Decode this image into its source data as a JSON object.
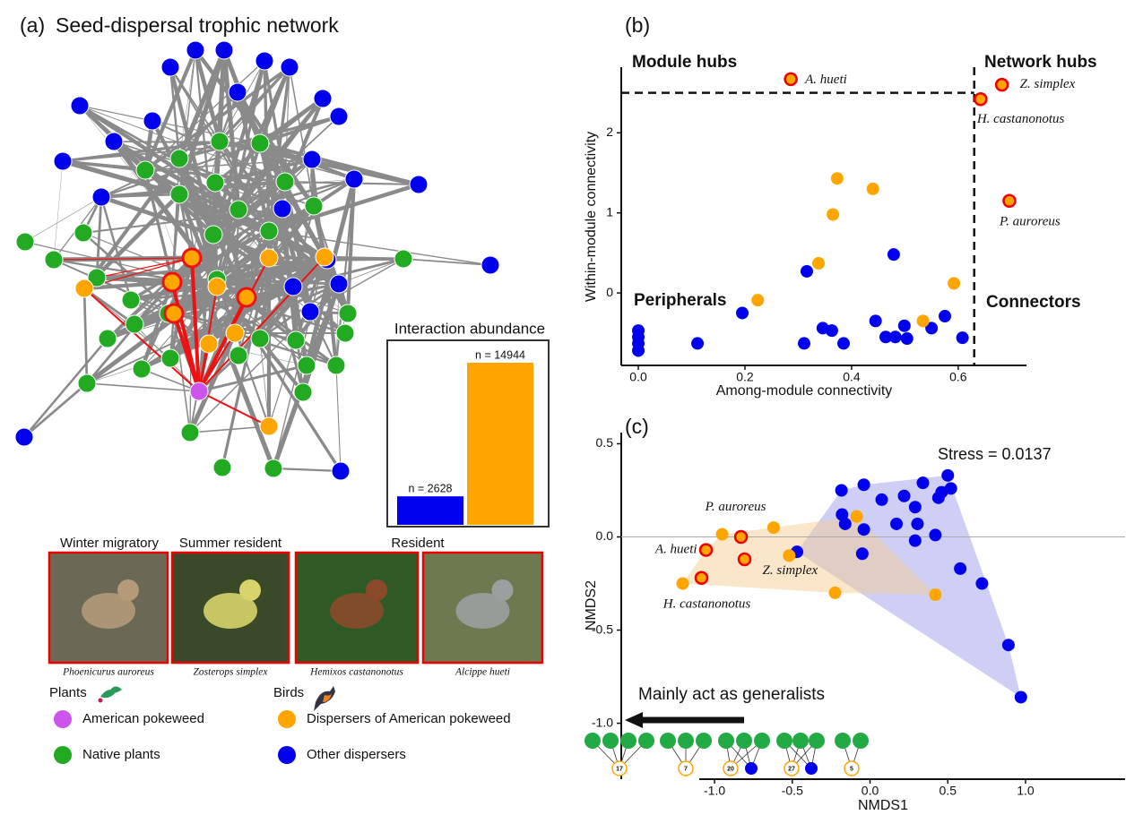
{
  "chart_data": [
    {
      "type": "network",
      "panel_label": "(a)",
      "title": "Seed-dispersal trophic network",
      "photo_groups": [
        "Winter migratory",
        "Summer resident",
        "Resident"
      ],
      "species": [
        "Phoenicurus auroreus",
        "Zosterops simplex",
        "Hemixos castanonotus",
        "Alcippe hueti"
      ],
      "legend": [
        {
          "title": "Plants",
          "items": [
            {
              "name": "American pokeweed",
              "color": "#cc55ee"
            },
            {
              "name": "Native plants",
              "color": "#22aa22"
            }
          ]
        },
        {
          "title": "Birds",
          "items": [
            {
              "name": "Dispersers of American pokeweed",
              "color": "#ffa500"
            },
            {
              "name": "Other dispersers",
              "color": "#0000ee"
            }
          ]
        }
      ]
    },
    {
      "type": "bar",
      "title": "Interaction abundance",
      "values": [
        2628,
        14944
      ],
      "value_labels": [
        "n = 2628",
        "n = 14944"
      ],
      "colors": [
        "#0000ee",
        "#ffa500"
      ]
    },
    {
      "type": "scatter",
      "panel_label": "(b)",
      "xlabel": "Among-module connectivity",
      "ylabel": "Within-module connectivity",
      "xlim": [
        -0.032,
        0.728
      ],
      "ylim": [
        -0.905,
        2.82
      ],
      "xticks": [
        {
          "value": 0,
          "label": "0.0"
        },
        0.2,
        0.4,
        0.6
      ],
      "yticks": [
        0,
        1,
        2
      ],
      "hline": 2.5,
      "vline": 0.63,
      "annotations": [
        "Module hubs",
        "Network hubs",
        "Peripherals",
        "Connectors"
      ],
      "series": [
        {
          "color": "#0000ee",
          "x": [
            0,
            0,
            0,
            0,
            0.111,
            0.195,
            0.316,
            0.311,
            0.346,
            0.363,
            0.385,
            0.479,
            0.445,
            0.464,
            0.482,
            0.499,
            0.504,
            0.55,
            0.575,
            0.608
          ],
          "y": [
            -0.47,
            -0.55,
            -0.63,
            -0.72,
            -0.63,
            -0.25,
            0.27,
            -0.63,
            -0.44,
            -0.47,
            -0.63,
            0.48,
            -0.35,
            -0.55,
            -0.55,
            -0.41,
            -0.57,
            -0.44,
            -0.29,
            -0.56
          ]
        },
        {
          "color": "#ffa500",
          "x": [
            0.373,
            0.365,
            0.44,
            0.338,
            0.224,
            0.592,
            0.534
          ],
          "y": [
            1.43,
            0.98,
            1.3,
            0.37,
            -0.09,
            0.12,
            -0.35
          ]
        },
        {
          "color": "#ffa500",
          "edgecolor": "#ee0000",
          "x": [
            0.286,
            0.682,
            0.642,
            0.696
          ],
          "y": [
            2.67,
            2.6,
            2.42,
            1.15
          ],
          "labels": [
            "A. hueti",
            "Z. simplex",
            "H. castanonotus",
            "P. auroreus"
          ]
        }
      ]
    },
    {
      "type": "scatter",
      "panel_label": "(c)",
      "xlabel": "NMDS1",
      "ylabel": "NMDS2",
      "xlim": [
        -1.6,
        1.64
      ],
      "ylim": [
        -1.3,
        0.56
      ],
      "xticks": [
        {
          "value": -1,
          "label": "-1.0"
        },
        -0.5,
        {
          "value": 0,
          "label": "0.0"
        },
        0.5,
        {
          "value": 1,
          "label": "1.0"
        }
      ],
      "yticks": [
        0.5,
        {
          "value": 0,
          "label": "0.0"
        },
        -0.5,
        {
          "value": -1,
          "label": "-1.0"
        }
      ],
      "hline": 0,
      "annotations": [
        "Stress = 0.0137"
      ],
      "arrow_text": "Mainly act as generalists",
      "examples": [
        17,
        7,
        20,
        27,
        5
      ],
      "series": [
        {
          "color": "#0000ee",
          "x": [
            -0.184,
            -0.04,
            0.075,
            0.219,
            0.34,
            0.5,
            0.44,
            0.46,
            0.29,
            0.17,
            0.305,
            0.42,
            0.29,
            -0.16,
            -0.18,
            -0.04,
            -0.47,
            -0.05,
            0.58,
            0.72,
            0.89,
            0.97,
            0.52
          ],
          "y": [
            0.25,
            0.28,
            0.2,
            0.22,
            0.29,
            0.33,
            0.21,
            0.24,
            0.16,
            0.07,
            0.07,
            0.01,
            -0.02,
            0.07,
            0.12,
            0.04,
            -0.08,
            -0.09,
            -0.17,
            -0.25,
            -0.58,
            -0.86,
            0.26
          ]
        },
        {
          "color": "#ffa500",
          "x": [
            -0.951,
            -0.62,
            -0.52,
            -1.205,
            -0.225,
            -0.086,
            0.42
          ],
          "y": [
            0.014,
            0.05,
            -0.1,
            -0.25,
            -0.3,
            0.11,
            -0.31
          ]
        },
        {
          "color": "#ffa500",
          "edgecolor": "#ee0000",
          "x": [
            -1.055,
            -0.83,
            -0.807,
            -1.084
          ],
          "y": [
            -0.07,
            0,
            -0.12,
            -0.22
          ],
          "labels": [
            "A. hueti",
            "P. auroreus",
            "Z. simplex",
            "H. castanonotus"
          ]
        }
      ]
    }
  ]
}
